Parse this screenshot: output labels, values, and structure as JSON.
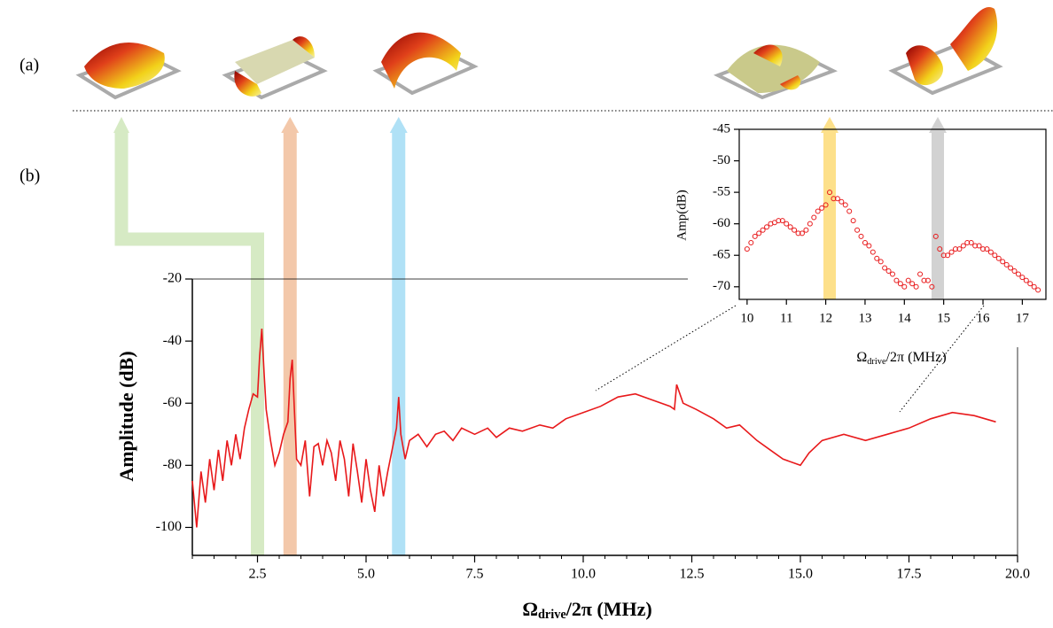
{
  "chart_data": [
    {
      "type": "line",
      "panel_label": "(b)",
      "top_label": "(a)",
      "xlabel": {
        "main": "Ω",
        "sub": "drive",
        "rest": "/2π (MHz)"
      },
      "ylabel": "Amplitude (dB)",
      "xlim": [
        1,
        20
      ],
      "ylim": [
        -109,
        -20
      ],
      "xticks": [
        2.5,
        {
          "value": 5,
          "label": "5.0"
        },
        7.5,
        {
          "value": 10,
          "label": "10.0"
        },
        12.5,
        {
          "value": 15,
          "label": "15.0"
        },
        17.5,
        {
          "value": 20,
          "label": "20.0"
        }
      ],
      "yticks": [
        -100,
        -80,
        -60,
        -40,
        -20
      ],
      "highlights": [
        {
          "x": 2.5,
          "color": "#d6eac4"
        },
        {
          "x": 3.25,
          "color": "#f3c8aa"
        },
        {
          "x": 5.75,
          "color": "#b0e1f6"
        }
      ],
      "series": [
        {
          "color": "#e8191b",
          "x": [
            1.0,
            1.1,
            1.2,
            1.3,
            1.4,
            1.5,
            1.6,
            1.7,
            1.8,
            1.9,
            2.0,
            2.1,
            2.2,
            2.3,
            2.4,
            2.5,
            2.55,
            2.6,
            2.65,
            2.7,
            2.8,
            2.9,
            3.0,
            3.1,
            3.2,
            3.25,
            3.3,
            3.35,
            3.4,
            3.5,
            3.6,
            3.7,
            3.8,
            3.9,
            4.0,
            4.1,
            4.2,
            4.3,
            4.4,
            4.5,
            4.6,
            4.7,
            4.8,
            4.9,
            5.0,
            5.1,
            5.2,
            5.3,
            5.4,
            5.5,
            5.6,
            5.7,
            5.75,
            5.8,
            5.9,
            6.0,
            6.2,
            6.4,
            6.6,
            6.8,
            7.0,
            7.2,
            7.5,
            7.8,
            8.0,
            8.3,
            8.6,
            9.0,
            9.3,
            9.6,
            10.0,
            10.4,
            10.8,
            11.2,
            11.6,
            12.0,
            12.1,
            12.15,
            12.3,
            12.6,
            13.0,
            13.3,
            13.6,
            14.0,
            14.3,
            14.6,
            15.0,
            15.2,
            15.5,
            16.0,
            16.5,
            17.0,
            17.5,
            18.0,
            18.5,
            19.0,
            19.5
          ],
          "values": [
            -85,
            -100,
            -82,
            -92,
            -78,
            -88,
            -75,
            -85,
            -72,
            -80,
            -70,
            -78,
            -68,
            -62,
            -57,
            -58,
            -45,
            -36,
            -50,
            -62,
            -72,
            -80,
            -76,
            -70,
            -66,
            -52,
            -46,
            -62,
            -78,
            -80,
            -72,
            -90,
            -74,
            -73,
            -80,
            -72,
            -76,
            -85,
            -72,
            -78,
            -90,
            -73,
            -82,
            -92,
            -78,
            -88,
            -95,
            -80,
            -90,
            -82,
            -75,
            -68,
            -58,
            -70,
            -78,
            -72,
            -70,
            -74,
            -70,
            -69,
            -72,
            -68,
            -70,
            -68,
            -71,
            -68,
            -69,
            -67,
            -68,
            -65,
            -63,
            -61,
            -58,
            -57,
            -59,
            -61,
            -62,
            -54,
            -60,
            -62,
            -65,
            -68,
            -67,
            -72,
            -75,
            -78,
            -80,
            -76,
            -72,
            -70,
            -72,
            -70,
            -68,
            -65,
            -63,
            -64,
            -66
          ]
        }
      ]
    },
    {
      "type": "scatter",
      "xlabel": {
        "main": "Ω",
        "sub": "drive",
        "rest": "/2π (MHz)"
      },
      "ylabel": "Amp(dB)",
      "xlim": [
        9.8,
        17.6
      ],
      "ylim": [
        -72,
        -45
      ],
      "xticks": [
        10,
        11,
        12,
        13,
        14,
        15,
        16,
        17
      ],
      "yticks": [
        -45,
        -50,
        -55,
        -60,
        -65,
        -70
      ],
      "highlights": [
        {
          "x": 12.1,
          "color": "#fde08a"
        },
        {
          "x": 14.85,
          "color": "#d2d2d2"
        }
      ],
      "series": [
        {
          "color": "#e8191b",
          "x": [
            10.0,
            10.1,
            10.2,
            10.3,
            10.4,
            10.5,
            10.6,
            10.7,
            10.8,
            10.9,
            11.0,
            11.1,
            11.2,
            11.3,
            11.4,
            11.5,
            11.6,
            11.7,
            11.8,
            11.9,
            12.0,
            12.1,
            12.2,
            12.3,
            12.4,
            12.5,
            12.6,
            12.7,
            12.8,
            12.9,
            13.0,
            13.1,
            13.2,
            13.3,
            13.4,
            13.5,
            13.6,
            13.7,
            13.8,
            13.9,
            14.0,
            14.1,
            14.2,
            14.3,
            14.4,
            14.5,
            14.6,
            14.7,
            14.8,
            14.9,
            15.0,
            15.1,
            15.2,
            15.3,
            15.4,
            15.5,
            15.6,
            15.7,
            15.8,
            15.9,
            16.0,
            16.1,
            16.2,
            16.3,
            16.4,
            16.5,
            16.6,
            16.7,
            16.8,
            16.9,
            17.0,
            17.1,
            17.2,
            17.3,
            17.4
          ],
          "values": [
            -64,
            -63,
            -62,
            -61.5,
            -61,
            -60.5,
            -60,
            -59.8,
            -59.5,
            -59.5,
            -60,
            -60.5,
            -61,
            -61.5,
            -61.5,
            -61,
            -60,
            -59,
            -58,
            -57.5,
            -57,
            -55,
            -56,
            -56,
            -56.5,
            -57,
            -58,
            -59.5,
            -61,
            -62,
            -63,
            -63.5,
            -64.5,
            -65.5,
            -66,
            -67,
            -67.5,
            -68,
            -69,
            -69.5,
            -70,
            -69,
            -69.5,
            -70,
            -68,
            -69,
            -69,
            -70,
            -62,
            -64,
            -65,
            -65,
            -64.5,
            -64,
            -64,
            -63.5,
            -63,
            -63,
            -63.5,
            -63.5,
            -64,
            -64,
            -64.5,
            -65,
            -65.5,
            -66,
            -66.5,
            -67,
            -67.5,
            -68,
            -68.5,
            -69,
            -69.5,
            -70,
            -70.5
          ]
        }
      ]
    }
  ]
}
